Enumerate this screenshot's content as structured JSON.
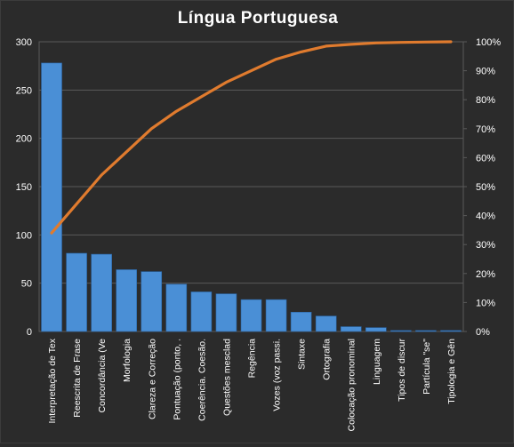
{
  "chart_data": {
    "type": "bar",
    "title": "Língua  Portuguesa",
    "categories": [
      "Interpretação de Tex",
      "Reescrita de Frase",
      "Concordância (Ve",
      "Morfologia",
      "Clareza e Correção",
      "Pontuação (ponto, .",
      "Coerência. Coesão.",
      "Questões mesclad",
      "Regência",
      "Vozes (voz passi.",
      "Sintaxe",
      "Ortografia",
      "Colocação pronominal",
      "Linguagem",
      "Tipos de discur",
      "Partícula \"se\"",
      "Tipologia e Gên"
    ],
    "series": [
      {
        "type": "bar",
        "values": [
          278,
          81,
          80,
          64,
          62,
          49,
          41,
          39,
          33,
          33,
          20,
          16,
          5,
          4,
          1,
          1,
          1
        ]
      },
      {
        "type": "line",
        "axis": "right",
        "values": [
          34,
          44,
          54,
          62,
          70,
          76,
          81,
          86,
          90,
          94,
          96.5,
          98.5,
          99.1,
          99.6,
          99.8,
          99.9,
          100
        ]
      }
    ],
    "y_left": {
      "min": 0,
      "max": 300,
      "ticks": [
        0,
        50,
        100,
        150,
        200,
        250,
        300
      ]
    },
    "y_right": {
      "min": 0,
      "max": 100,
      "ticks": [
        0,
        10,
        20,
        30,
        40,
        50,
        60,
        70,
        80,
        90,
        100
      ],
      "tick_labels": [
        "0%",
        "10%",
        "20%",
        "30%",
        "40%",
        "50%",
        "60%",
        "70%",
        "80%",
        "90%",
        "100%"
      ]
    },
    "grid": true,
    "legend": "none",
    "colors": {
      "bar": "#4a8fd6",
      "line": "#e07b2e",
      "background": "#2b2b2b",
      "grid": "#5a5a5a",
      "text": "#ffffff"
    }
  }
}
